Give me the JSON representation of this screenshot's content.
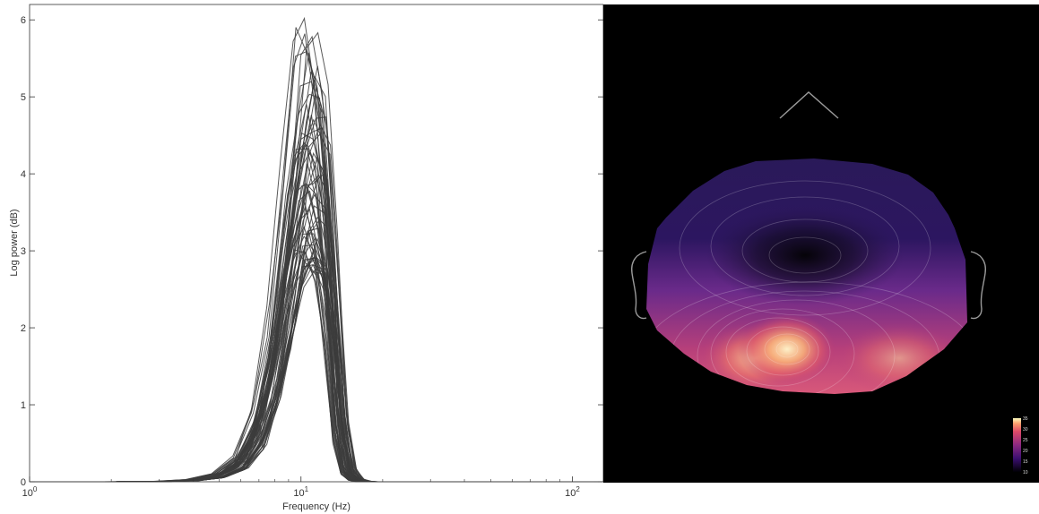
{
  "chart_data": [
    {
      "type": "line",
      "title": "",
      "xlabel": "Frequency (Hz)",
      "ylabel": "Log power  (dB)",
      "xscale": "log",
      "xlim": [
        1,
        130
      ],
      "ylim": [
        0,
        6.2
      ],
      "x_ticks": [
        1,
        10,
        100
      ],
      "x_tick_labels": [
        "10^0",
        "10^1",
        "10^2"
      ],
      "y_ticks": [
        0,
        1,
        2,
        3,
        4,
        5,
        6
      ],
      "grid": false,
      "legend": "none",
      "line_color": "#3c3c3c",
      "series_count": 64,
      "x": [
        1,
        2,
        3,
        4,
        5,
        6,
        7,
        8,
        9,
        10,
        11,
        12,
        13,
        14,
        15,
        16,
        17,
        18,
        19,
        20,
        25,
        30,
        40,
        50,
        60,
        80,
        100,
        130
      ],
      "series_envelope": {
        "min_peak_db": 2.9,
        "max_peak_db": 6.1,
        "peak_frequency_hz": 11,
        "representative_profile": [
          0,
          0,
          0.003,
          0.02,
          0.08,
          0.25,
          0.7,
          1.6,
          2.9,
          4.1,
          4.5,
          4.0,
          2.6,
          0.8,
          0.15,
          0.03,
          0.005,
          0,
          0,
          0,
          0,
          0,
          0,
          0,
          0,
          0,
          0,
          0
        ]
      }
    },
    {
      "type": "heatmap",
      "title": "",
      "colormap": "magma",
      "background": "#000000",
      "colorbar": {
        "placement": "bottom-right",
        "tick_labels": [
          "10",
          "15",
          "20",
          "25",
          "30",
          "35"
        ]
      },
      "high_region": "posterior",
      "low_region": "frontal-central"
    }
  ]
}
